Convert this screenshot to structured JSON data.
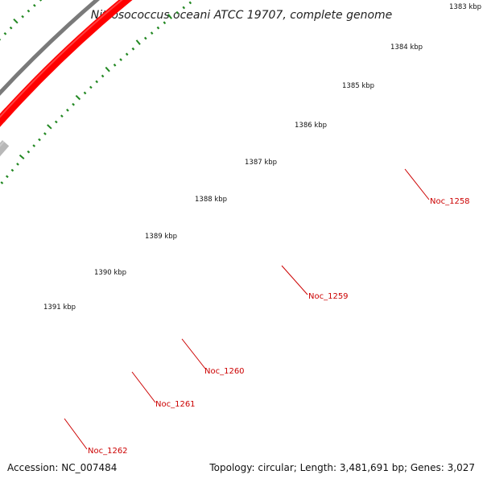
{
  "title": "Nitrosococcus oceani ATCC 19707, complete genome",
  "footer": {
    "accession": "Accession: NC_007484",
    "stats": "Topology: circular; Length: 3,481,691 bp; Genes: 3,027"
  },
  "scale_labels": [
    "1383 kbp",
    "1384 kbp",
    "1385 kbp",
    "1386 kbp",
    "1387 kbp",
    "1388 kbp",
    "1389 kbp",
    "1390 kbp",
    "1391 kbp"
  ],
  "gene_labels": [
    "Noc_1258",
    "Noc_1259",
    "Noc_1260",
    "Noc_1261",
    "Noc_1262"
  ],
  "colors": {
    "backbone": "#7a7a7a",
    "gene_red": "#ff0000",
    "gene_gray": "#b8b8b8",
    "gene_navy": "#1a1a8c",
    "gene_green": "#33cc33",
    "gene_teal": "#33dd99",
    "gene_cyan": "#00e5ee",
    "ticks": "#228822",
    "label_line": "#cc0000"
  }
}
